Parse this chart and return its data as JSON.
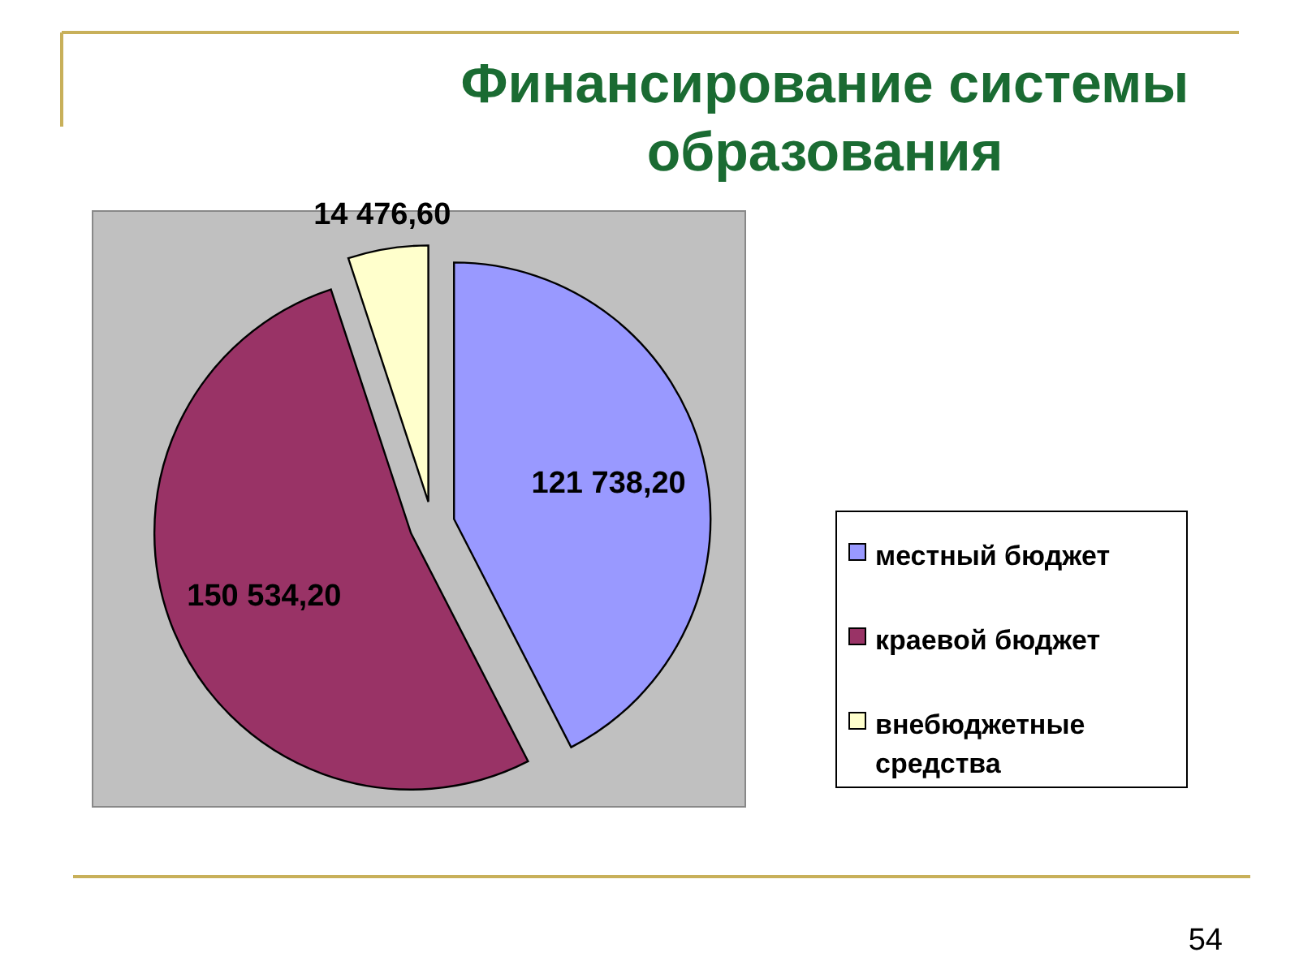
{
  "chart_data": {
    "type": "pie",
    "title": "Финансирование системы образования",
    "categories": [
      "местный бюджет",
      "краевой бюджет",
      "внебюджетные средства"
    ],
    "values": [
      121738.2,
      150534.2,
      14476.6
    ],
    "value_labels": [
      "121 738,20",
      "150 534,20",
      "14 476,60"
    ],
    "colors": [
      "#9999ff",
      "#993366",
      "#ffffcc"
    ],
    "legend": "right",
    "annotations": [
      "54"
    ]
  }
}
